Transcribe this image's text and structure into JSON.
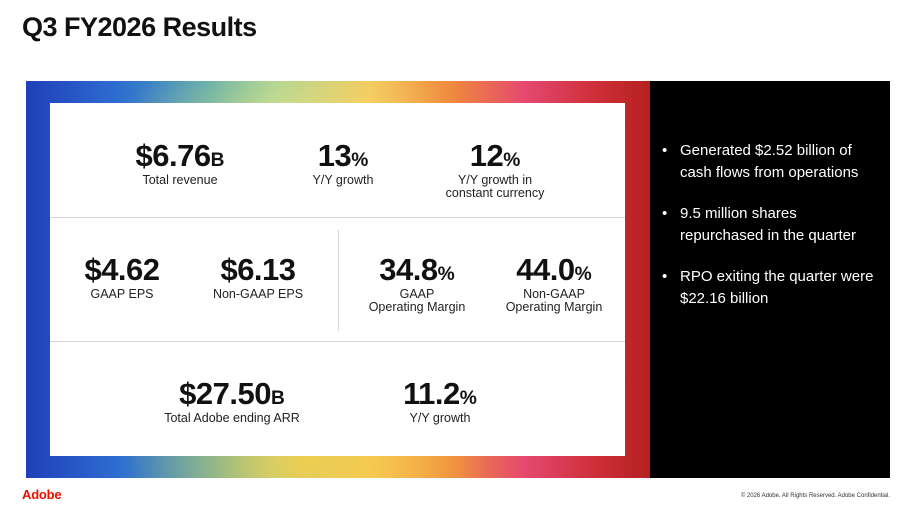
{
  "title": "Q3 FY2026 Results",
  "row1": [
    {
      "value": "$6.76",
      "unit": "B",
      "label": "Total revenue"
    },
    {
      "value": "13",
      "unit": "%",
      "label": "Y/Y growth"
    },
    {
      "value": "12",
      "unit": "%",
      "label": "Y/Y growth in\nconstant currency"
    }
  ],
  "row2": [
    {
      "value": "$4.62",
      "unit": "",
      "label": "GAAP EPS"
    },
    {
      "value": "$6.13",
      "unit": "",
      "label": "Non-GAAP EPS"
    },
    {
      "value": "34.8",
      "unit": "%",
      "label": "GAAP\nOperating Margin"
    },
    {
      "value": "44.0",
      "unit": "%",
      "label": "Non-GAAP\nOperating Margin"
    }
  ],
  "row3": [
    {
      "value": "$27.50",
      "unit": "B",
      "label": "Total Adobe ending ARR"
    },
    {
      "value": "11.2",
      "unit": "%",
      "label": "Y/Y growth"
    }
  ],
  "bullets": [
    "Generated $2.52 billion of cash flows from operations",
    "9.5 million shares repurchased in the quarter",
    "RPO exiting the quarter were $22.16 billion"
  ],
  "bullet_symbol": "•",
  "footer": {
    "logo": "Adobe",
    "copyright": "© 2026 Adobe. All Rights Reserved. Adobe Confidential."
  },
  "colors": {
    "brand_red": "#eb1000",
    "panel_black": "#000000"
  }
}
